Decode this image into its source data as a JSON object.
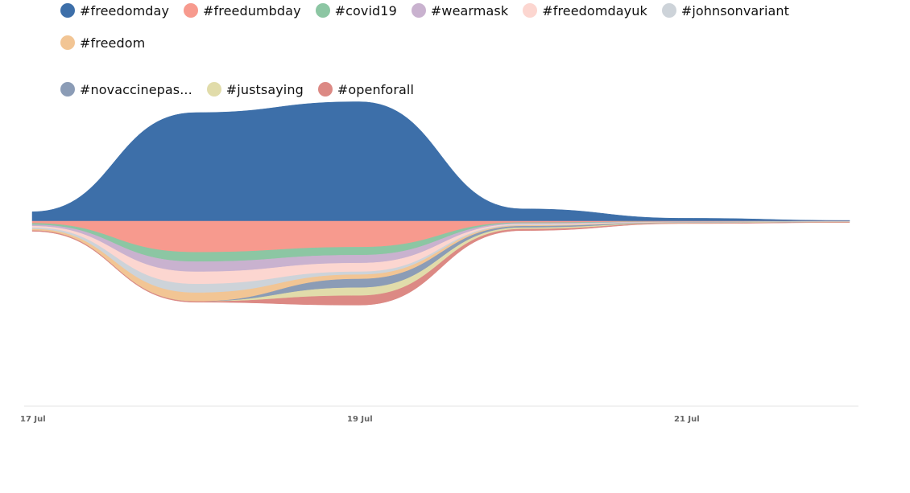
{
  "chart_data": {
    "type": "area",
    "layout": "streamgraph",
    "x_ticks": [
      "17 Jul",
      "19 Jul",
      "21 Jul"
    ],
    "x": [
      "2021-07-17",
      "2021-07-18",
      "2021-07-19",
      "2021-07-20",
      "2021-07-21",
      "2021-07-22"
    ],
    "legend_position": "top",
    "grid": false,
    "series": [
      {
        "name": "#freedomday",
        "color": "#3d6fa9",
        "values": [
          13,
          150,
          165,
          17,
          4,
          1
        ]
      },
      {
        "name": "#freedumbday",
        "color": "#f79a8e",
        "values": [
          3,
          43,
          36,
          2,
          0.6,
          0.3
        ]
      },
      {
        "name": "#covid19",
        "color": "#8cc6a3",
        "values": [
          2,
          13,
          11,
          1,
          0.3,
          0.2
        ]
      },
      {
        "name": "#wearmask",
        "color": "#c9b2cf",
        "values": [
          2,
          14,
          11,
          1,
          0.3,
          0.2
        ]
      },
      {
        "name": "#freedomdayuk",
        "color": "#fcd6d0",
        "values": [
          2,
          17,
          12,
          1,
          0.3,
          0.2
        ]
      },
      {
        "name": "#johnsonvariant",
        "color": "#cdd3d9",
        "values": [
          2,
          12,
          4,
          1,
          0.3,
          0.2
        ]
      },
      {
        "name": "#freedom",
        "color": "#f2c594",
        "values": [
          2,
          12,
          6,
          1,
          0.3,
          0.2
        ]
      },
      {
        "name": "#novaccinepas...",
        "color": "#8b9cb6",
        "values": [
          0,
          0,
          12,
          2,
          0.4,
          0.2
        ]
      },
      {
        "name": "#justsaying",
        "color": "#e1dcaa",
        "values": [
          0,
          0,
          11,
          2,
          0.4,
          0.2
        ]
      },
      {
        "name": "#openforall",
        "color": "#dc8984",
        "values": [
          1,
          1,
          13,
          2,
          0.4,
          0.2
        ]
      }
    ]
  }
}
